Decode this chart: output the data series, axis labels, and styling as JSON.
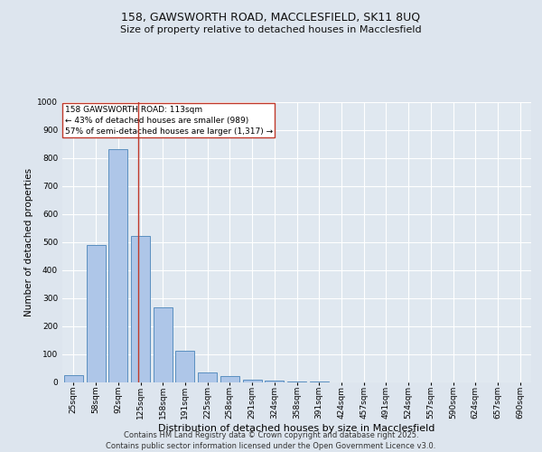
{
  "title_line1": "158, GAWSWORTH ROAD, MACCLESFIELD, SK11 8UQ",
  "title_line2": "Size of property relative to detached houses in Macclesfield",
  "xlabel": "Distribution of detached houses by size in Macclesfield",
  "ylabel": "Number of detached properties",
  "categories": [
    "25sqm",
    "58sqm",
    "92sqm",
    "125sqm",
    "158sqm",
    "191sqm",
    "225sqm",
    "258sqm",
    "291sqm",
    "324sqm",
    "358sqm",
    "391sqm",
    "424sqm",
    "457sqm",
    "491sqm",
    "524sqm",
    "557sqm",
    "590sqm",
    "624sqm",
    "657sqm",
    "690sqm"
  ],
  "values": [
    25,
    490,
    830,
    520,
    265,
    110,
    35,
    20,
    8,
    5,
    2,
    1,
    0,
    0,
    0,
    0,
    0,
    0,
    0,
    0,
    0
  ],
  "bar_color": "#aec6e8",
  "bar_edge_color": "#5a8fc0",
  "bar_linewidth": 0.7,
  "vline_x_index": 2.88,
  "vline_color": "#c0392b",
  "annotation_text": "158 GAWSWORTH ROAD: 113sqm\n← 43% of detached houses are smaller (989)\n57% of semi-detached houses are larger (1,317) →",
  "annotation_box_color": "#ffffff",
  "annotation_box_edgecolor": "#c0392b",
  "annotation_fontsize": 6.5,
  "ylim": [
    0,
    1000
  ],
  "yticks": [
    0,
    100,
    200,
    300,
    400,
    500,
    600,
    700,
    800,
    900,
    1000
  ],
  "background_color": "#e0e8f0",
  "grid_color": "#ffffff",
  "footer_text": "Contains HM Land Registry data © Crown copyright and database right 2025.\nContains public sector information licensed under the Open Government Licence v3.0.",
  "title_fontsize": 9,
  "subtitle_fontsize": 8,
  "xlabel_fontsize": 8,
  "ylabel_fontsize": 7.5,
  "tick_fontsize": 6.5,
  "footer_fontsize": 6.0
}
